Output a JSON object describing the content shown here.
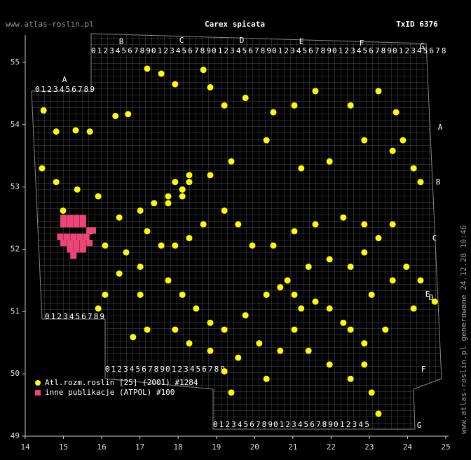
{
  "chart_data": {
    "type": "scatter",
    "site": "www.atlas-roslin.pl",
    "title": "Carex spicata",
    "taxon_id": "TxID 6376",
    "side_note": "www.atlas-roslin.pl generowane 24.12.28 10:46",
    "xlim": [
      14,
      25
    ],
    "ylim": [
      49,
      55
    ],
    "xticks": [
      14,
      15,
      16,
      17,
      18,
      19,
      20,
      21,
      22,
      23,
      24,
      25
    ],
    "yticks": [
      49,
      50,
      51,
      52,
      53,
      54,
      55
    ],
    "grid_letters": [
      "A",
      "B",
      "C",
      "D",
      "E",
      "F",
      "G",
      "A",
      "B",
      "C",
      "D",
      "E",
      "F",
      "G"
    ],
    "grid_digits": [
      "0123456789",
      "0123456789",
      "0123456789",
      "0123456789",
      "0123456789",
      "0123456789",
      "012345678",
      "0123456789",
      "0123456789",
      "0123456789",
      "0123456789",
      "0123456789",
      "012345"
    ],
    "series": [
      {
        "name": "Atl.rozm.roslin [25] (2001) #1284",
        "color": "#ffff00",
        "x": [
          14.48,
          14.81,
          15.32,
          15.69,
          16.36,
          16.69,
          17.19,
          17.56,
          18.66,
          17.92,
          18.84,
          19.21,
          19.76,
          20.49,
          21.04,
          21.59,
          22.51,
          23.24,
          23.7,
          23.88,
          24.16,
          24.34,
          23.61,
          22.87,
          21.96,
          21.22,
          20.31,
          19.39,
          18.84,
          18.11,
          17.74,
          17.37,
          17.01,
          16.46,
          15.91,
          15.36,
          14.81,
          14.44,
          14.99,
          15.72,
          16.09,
          16.64,
          17.01,
          16.46,
          16.09,
          15.91,
          17.01,
          17.74,
          18.11,
          18.47,
          18.84,
          19.21,
          19.76,
          20.31,
          20.67,
          21.04,
          21.59,
          21.96,
          22.32,
          22.51,
          22.87,
          23.06,
          23.61,
          23.97,
          24.34,
          24.71,
          24.16,
          23.42,
          22.87,
          23.06,
          23.24,
          22.51,
          21.96,
          21.41,
          20.67,
          20.12,
          19.57,
          19.21,
          18.84,
          18.29,
          17.92,
          17.19,
          16.82,
          19.39,
          20.31,
          21.04,
          21.22,
          20.86,
          21.41,
          21.96,
          22.51,
          22.87,
          23.24,
          23.61,
          22.87,
          22.32,
          21.59,
          21.04,
          20.49,
          19.94,
          19.57,
          19.21,
          18.66,
          18.29,
          17.92,
          17.56,
          17.19,
          18.11,
          18.29,
          17.92,
          18.29,
          18.11,
          17.74
        ],
        "values": [
          54.23,
          53.89,
          53.91,
          53.89,
          54.14,
          54.17,
          54.9,
          54.82,
          54.88,
          54.65,
          54.6,
          54.31,
          54.43,
          54.2,
          54.31,
          54.54,
          54.31,
          54.54,
          54.2,
          53.75,
          53.3,
          53.08,
          53.58,
          53.75,
          53.41,
          53.3,
          53.75,
          53.41,
          53.19,
          52.96,
          52.74,
          52.74,
          52.62,
          52.51,
          52.85,
          52.96,
          53.08,
          53.3,
          52.62,
          52.29,
          52.06,
          51.95,
          51.72,
          51.61,
          51.27,
          51.05,
          51.27,
          51.5,
          51.27,
          51.05,
          50.82,
          50.71,
          50.94,
          51.27,
          51.39,
          51.27,
          51.16,
          51.05,
          50.82,
          50.71,
          50.49,
          51.27,
          51.5,
          51.72,
          51.5,
          51.16,
          51.05,
          50.71,
          50.15,
          49.7,
          49.36,
          49.92,
          50.15,
          50.37,
          50.37,
          50.49,
          50.26,
          50.04,
          50.37,
          50.49,
          50.71,
          50.71,
          50.59,
          49.7,
          49.92,
          50.71,
          51.05,
          51.5,
          51.72,
          51.84,
          51.72,
          51.95,
          52.18,
          52.4,
          52.4,
          52.51,
          52.4,
          52.29,
          52.06,
          52.06,
          52.4,
          52.62,
          52.4,
          52.18,
          52.06,
          52.06,
          52.29,
          52.96,
          53.19,
          53.08,
          53.08,
          52.85,
          52.85
        ]
      },
      {
        "name": "inne publikacje (ATPOL) #100",
        "color": "#ee4477",
        "x": [
          15.0,
          15.17,
          15.34,
          15.51,
          15.0,
          15.17,
          15.34,
          15.51,
          15.68,
          14.92,
          15.09,
          15.26,
          15.43,
          15.6,
          15.77,
          15.0,
          15.17,
          15.34,
          15.51,
          15.68,
          15.17,
          15.34,
          15.51,
          15.26
        ],
        "values": [
          52.5,
          52.5,
          52.5,
          52.5,
          52.4,
          52.4,
          52.4,
          52.4,
          52.3,
          52.2,
          52.2,
          52.2,
          52.2,
          52.2,
          52.3,
          52.1,
          52.1,
          52.1,
          52.1,
          52.1,
          52.0,
          52.0,
          52.0,
          51.9
        ]
      }
    ]
  }
}
